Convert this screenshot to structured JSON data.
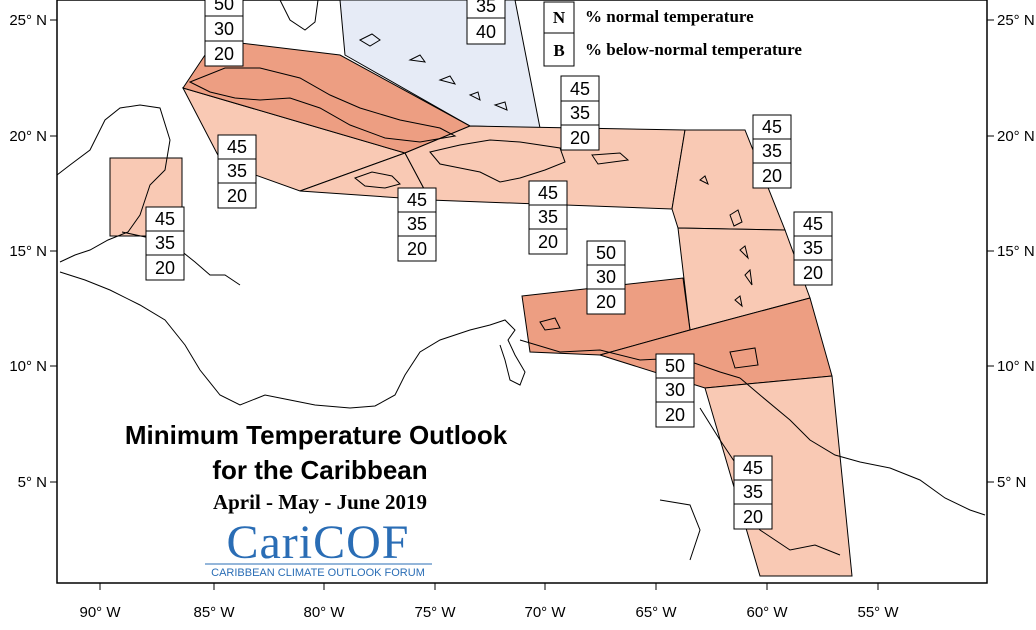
{
  "legend": {
    "items": [
      {
        "letter": "N",
        "label": "% normal temperature"
      },
      {
        "letter": "B",
        "label": "% below-normal temperature"
      }
    ]
  },
  "title": {
    "line1": "Minimum Temperature Outlook",
    "line2": "for the Caribbean",
    "period": "April - May - June 2019"
  },
  "logo": {
    "name": "CariCOF",
    "caption": "CARIBBEAN CLIMATE OUTLOOK FORUM"
  },
  "axes": {
    "lat_ticks": [
      "25° N",
      "20° N",
      "15° N",
      "10° N",
      "5° N"
    ],
    "lon_ticks": [
      "90° W",
      "85° W",
      "80° W",
      "75° W",
      "70° W",
      "65° W",
      "60° W",
      "55° W"
    ]
  },
  "colors": {
    "light_salmon": "#f9c9b4",
    "medium_salmon": "#ed9e82",
    "light_blue": "#e6ebf6",
    "outline": "#000000"
  },
  "regions": [
    {
      "name": "bahamas",
      "values": [
        "",
        "35",
        "40"
      ],
      "color": "light_blue"
    },
    {
      "name": "cuba",
      "values": [
        "50",
        "30",
        "20"
      ],
      "color": "medium_salmon"
    },
    {
      "name": "northeast-caribbean",
      "values": [
        "45",
        "35",
        "20"
      ],
      "color": "light_salmon"
    },
    {
      "name": "cayman-jamaica-west",
      "values": [
        "45",
        "35",
        "20"
      ],
      "color": "light_salmon"
    },
    {
      "name": "belize",
      "values": [
        "45",
        "35",
        "20"
      ],
      "color": "light_salmon"
    },
    {
      "name": "jamaica",
      "values": [
        "45",
        "35",
        "20"
      ],
      "color": "light_salmon"
    },
    {
      "name": "hispaniola-puerto-rico",
      "values": [
        "45",
        "35",
        "20"
      ],
      "color": "light_salmon"
    },
    {
      "name": "leeward-islands",
      "values": [
        "45",
        "35",
        "20"
      ],
      "color": "light_salmon"
    },
    {
      "name": "windward-islands",
      "values": [
        "45",
        "35",
        "20"
      ],
      "color": "light_salmon"
    },
    {
      "name": "abc-islands",
      "values": [
        "50",
        "30",
        "20"
      ],
      "color": "medium_salmon"
    },
    {
      "name": "trinidad-tobago",
      "values": [
        "50",
        "30",
        "20"
      ],
      "color": "medium_salmon"
    },
    {
      "name": "guianas",
      "values": [
        "45",
        "35",
        "20"
      ],
      "color": "light_salmon"
    }
  ]
}
